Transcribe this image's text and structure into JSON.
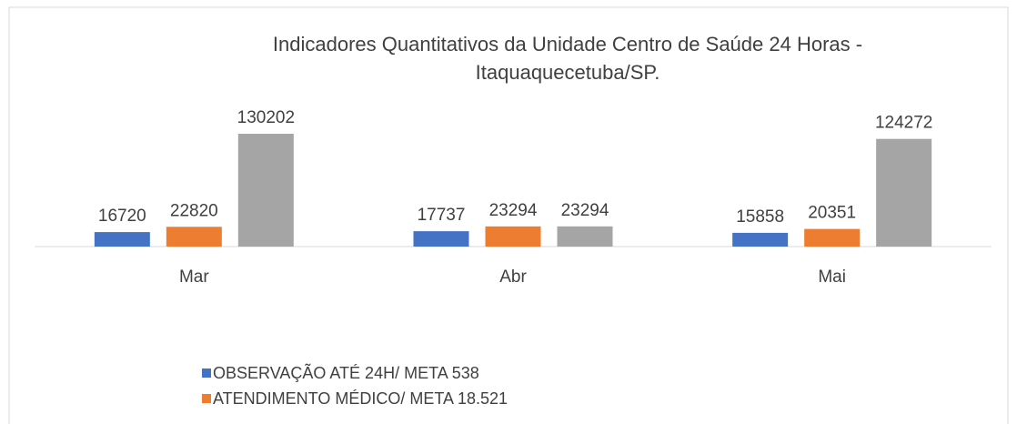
{
  "chart_data": {
    "type": "bar",
    "title": [
      "Indicadores Quantitativos da Unidade Centro de Saúde 24 Horas -",
      "Itaquaquecetuba/SP."
    ],
    "categories": [
      "Mar",
      "Abr",
      "Mai"
    ],
    "series": [
      {
        "name": "OBSERVAÇÃO ATÉ 24H/ META 538",
        "color": "#4472c4",
        "values": [
          16720,
          17737,
          15858
        ]
      },
      {
        "name": "ATENDIMENTO MÉDICO/ META 18.521",
        "color": "#ed7d31",
        "values": [
          22820,
          23294,
          20351
        ]
      },
      {
        "color": "#a5a5a5",
        "values": [
          130202,
          23294,
          124272
        ]
      }
    ],
    "ylim": [
      0,
      140000
    ]
  }
}
